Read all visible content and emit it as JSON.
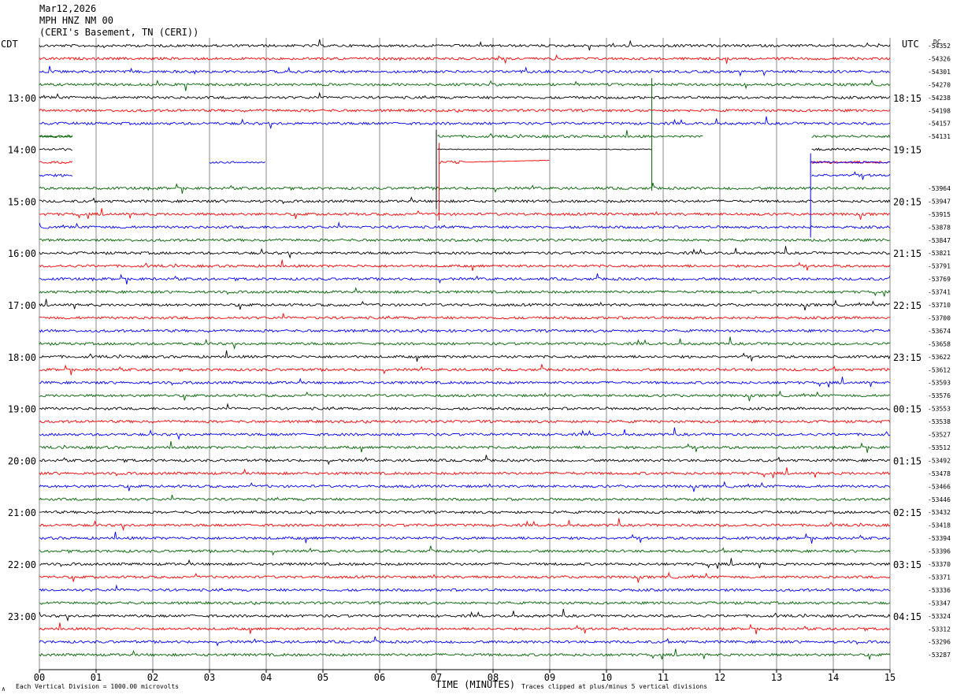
{
  "header": {
    "date": "Mar12,2026",
    "station": "MPH HNZ NM 00",
    "location": "(CERI's Basement, TN (CERI))"
  },
  "labels": {
    "left_tz": "CDT",
    "right_tz": "UTC",
    "dc": "DC",
    "xlabel": "TIME (MINUTES)",
    "footer_left": "Each Vertical Division = 1000.00 microvolts",
    "footer_right": "Traces clipped at plus/minus 5 vertical divisions",
    "corner_mark": "∧"
  },
  "colors": {
    "cycle": [
      "#000000",
      "#ff0000",
      "#0000ff",
      "#006400"
    ],
    "grid": "#888888"
  },
  "chart_data": {
    "type": "line",
    "title": "Mar12,2026 MPH HNZ NM 00 (CERI's Basement, TN (CERI))",
    "xlabel": "TIME (MINUTES)",
    "xlim": [
      0,
      15
    ],
    "x_ticks": [
      "00",
      "01",
      "02",
      "03",
      "04",
      "05",
      "06",
      "07",
      "08",
      "09",
      "10",
      "11",
      "12",
      "13",
      "14",
      "15"
    ],
    "row_count": 48,
    "minutes_per_row": 15,
    "left_time_labels": [
      {
        "row": 4,
        "text": "13:00"
      },
      {
        "row": 8,
        "text": "14:00"
      },
      {
        "row": 12,
        "text": "15:00"
      },
      {
        "row": 16,
        "text": "16:00"
      },
      {
        "row": 20,
        "text": "17:00"
      },
      {
        "row": 24,
        "text": "18:00"
      },
      {
        "row": 28,
        "text": "19:00"
      },
      {
        "row": 32,
        "text": "20:00"
      },
      {
        "row": 36,
        "text": "21:00"
      },
      {
        "row": 40,
        "text": "22:00"
      },
      {
        "row": 44,
        "text": "23:00"
      }
    ],
    "right_time_labels": [
      {
        "row": 4,
        "text": "18:15"
      },
      {
        "row": 8,
        "text": "19:15"
      },
      {
        "row": 12,
        "text": "20:15"
      },
      {
        "row": 16,
        "text": "21:15"
      },
      {
        "row": 20,
        "text": "22:15"
      },
      {
        "row": 24,
        "text": "23:15"
      },
      {
        "row": 28,
        "text": "00:15"
      },
      {
        "row": 32,
        "text": "01:15"
      },
      {
        "row": 36,
        "text": "02:15"
      },
      {
        "row": 40,
        "text": "03:15"
      },
      {
        "row": 44,
        "text": "04:15"
      }
    ],
    "dc_offsets": [
      {
        "row": 0,
        "text": "-54352"
      },
      {
        "row": 1,
        "text": "-54326"
      },
      {
        "row": 2,
        "text": "-54301"
      },
      {
        "row": 3,
        "text": "-54270"
      },
      {
        "row": 4,
        "text": "-54238"
      },
      {
        "row": 5,
        "text": "-54198"
      },
      {
        "row": 6,
        "text": "-54157"
      },
      {
        "row": 7,
        "text": "-54131"
      },
      {
        "row": 11,
        "text": "-53964"
      },
      {
        "row": 12,
        "text": "-53947"
      },
      {
        "row": 13,
        "text": "-53915"
      },
      {
        "row": 14,
        "text": "-53878"
      },
      {
        "row": 15,
        "text": "-53847"
      },
      {
        "row": 16,
        "text": "-53821"
      },
      {
        "row": 17,
        "text": "-53791"
      },
      {
        "row": 18,
        "text": "-53769"
      },
      {
        "row": 19,
        "text": "-53741"
      },
      {
        "row": 20,
        "text": "-53710"
      },
      {
        "row": 21,
        "text": "-53700"
      },
      {
        "row": 22,
        "text": "-53674"
      },
      {
        "row": 23,
        "text": "-53658"
      },
      {
        "row": 24,
        "text": "-53622"
      },
      {
        "row": 25,
        "text": "-53612"
      },
      {
        "row": 26,
        "text": "-53593"
      },
      {
        "row": 27,
        "text": "-53576"
      },
      {
        "row": 28,
        "text": "-53553"
      },
      {
        "row": 29,
        "text": "-53538"
      },
      {
        "row": 30,
        "text": "-53527"
      },
      {
        "row": 31,
        "text": "-53512"
      },
      {
        "row": 32,
        "text": "-53492"
      },
      {
        "row": 33,
        "text": "-53478"
      },
      {
        "row": 34,
        "text": "-53466"
      },
      {
        "row": 35,
        "text": "-53446"
      },
      {
        "row": 36,
        "text": "-53432"
      },
      {
        "row": 37,
        "text": "-53418"
      },
      {
        "row": 38,
        "text": "-53394"
      },
      {
        "row": 39,
        "text": "-53396"
      },
      {
        "row": 40,
        "text": "-53370"
      },
      {
        "row": 41,
        "text": "-53371"
      },
      {
        "row": 42,
        "text": "-53336"
      },
      {
        "row": 43,
        "text": "-53347"
      },
      {
        "row": 44,
        "text": "-53324"
      },
      {
        "row": 45,
        "text": "-53312"
      },
      {
        "row": 46,
        "text": "-53296"
      },
      {
        "row": 47,
        "text": "-53287"
      }
    ],
    "data_gaps": [
      {
        "rows": [
          7,
          10
        ],
        "start_min": 0.6,
        "end_min": 7.0
      },
      {
        "rows": [
          7,
          10
        ],
        "start_min": 10.8,
        "end_min": 13.6
      }
    ],
    "grid": true,
    "trace_amplitude_divisions_clip": 5,
    "vertical_division_microvolts": 1000.0
  }
}
